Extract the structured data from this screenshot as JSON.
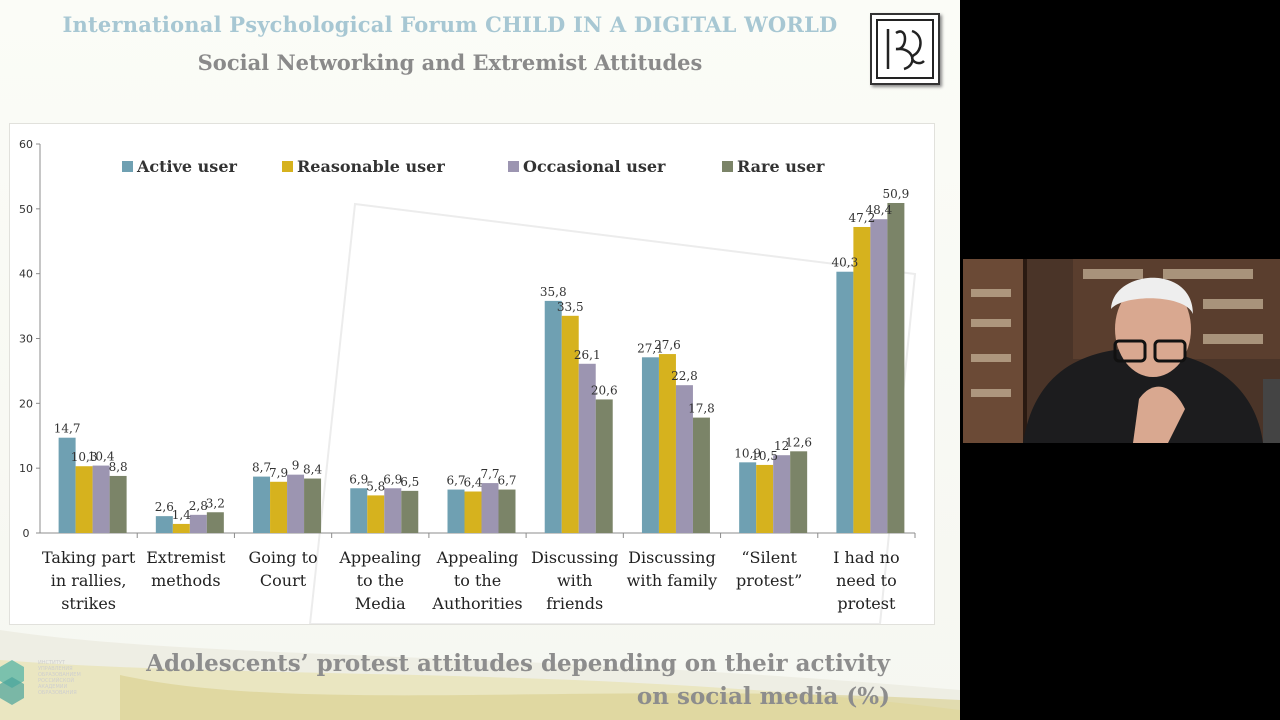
{
  "slide": {
    "title": "International Psychological Forum CHILD IN A DIGITAL WORLD",
    "subtitle": "Social Networking and Extremist Attitudes",
    "caption_line1": "Adolescents’ protest attitudes depending on their activity",
    "caption_line2": "on social media (%)",
    "logo_icon": "forum-monogram-logo",
    "institute_logo_text": "ИНСТИТУТ УПРАВЛЕНИЯ ОБРАЗОВАНИЕМ РОССИЙСКОЙ АКАДЕМИИ ОБРАЗОВАНИЯ"
  },
  "colors": {
    "active": "#6fa0b2",
    "reasonable": "#d6b21e",
    "occasional": "#9c95b1",
    "rare": "#7b8468",
    "axis": "#8c8c8c"
  },
  "chart_data": {
    "type": "bar",
    "categories": [
      [
        "Taking part",
        "in rallies,",
        "strikes"
      ],
      [
        "Extremist",
        "methods"
      ],
      [
        "Going to",
        "Court"
      ],
      [
        "Appealing",
        "to the",
        "Media"
      ],
      [
        "Appealing",
        "to the",
        "Authorities"
      ],
      [
        "Discussing",
        "with",
        "friends"
      ],
      [
        "Discussing",
        "with family"
      ],
      [
        "“Silent",
        "protest”"
      ],
      [
        "I had no",
        "need to",
        "protest"
      ]
    ],
    "series": [
      {
        "name": "Active user",
        "values": [
          14.7,
          2.6,
          8.7,
          6.9,
          6.7,
          35.8,
          27.1,
          10.9,
          40.3
        ],
        "labels": [
          "14,7",
          "2,6",
          "8,7",
          "6,9",
          "6,7",
          "35,8",
          "27,1",
          "10,9",
          "40,3"
        ]
      },
      {
        "name": "Reasonable user",
        "values": [
          10.3,
          1.4,
          7.9,
          5.8,
          6.4,
          33.5,
          27.6,
          10.5,
          47.2
        ],
        "labels": [
          "10,3",
          "1,4",
          "7,9",
          "5,8",
          "6,4",
          "33,5",
          "27,6",
          "10,5",
          "47,2"
        ]
      },
      {
        "name": "Occasional user",
        "values": [
          10.4,
          2.8,
          9,
          6.9,
          7.7,
          26.1,
          22.8,
          12,
          48.4
        ],
        "labels": [
          "10,4",
          "2,8",
          "9",
          "6,9",
          "7,7",
          "26,1",
          "22,8",
          "12",
          "48,4"
        ]
      },
      {
        "name": "Rare user",
        "values": [
          8.8,
          3.2,
          8.4,
          6.5,
          6.7,
          20.6,
          17.8,
          12.6,
          50.9
        ],
        "labels": [
          "8,8",
          "3,2",
          "8,4",
          "6,5",
          "6,7",
          "20,6",
          "17,8",
          "12,6",
          "50,9"
        ]
      }
    ],
    "ylim": [
      0,
      60
    ],
    "yticks": [
      "0",
      "10",
      "20",
      "30",
      "40",
      "50",
      "60"
    ],
    "legend_position": "top"
  }
}
